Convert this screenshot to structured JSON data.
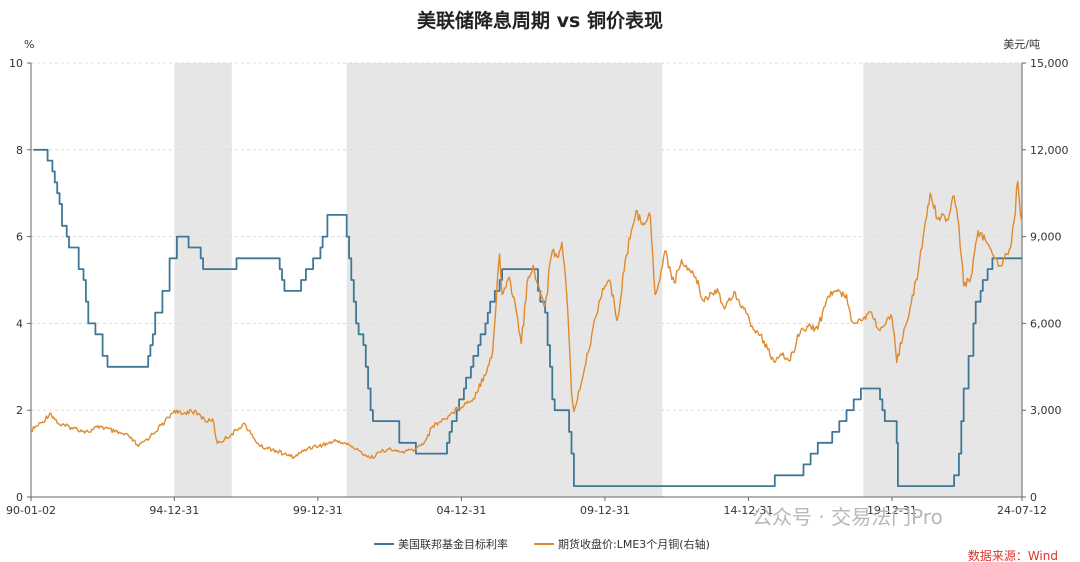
{
  "chart_data": {
    "type": "line",
    "title": "美联储降息周期 vs 铜价表现",
    "left_unit": "%",
    "right_unit": "美元/吨",
    "x_range": [
      "1990-01-02",
      "2024-07-12"
    ],
    "x_ticks": [
      "90-01-02",
      "94-12-31",
      "99-12-31",
      "04-12-31",
      "09-12-31",
      "14-12-31",
      "19-12-31",
      "24-07-12"
    ],
    "y_left": {
      "min": 0,
      "max": 10,
      "ticks": [
        "0",
        "2",
        "4",
        "6",
        "8",
        "10"
      ]
    },
    "y_right": {
      "min": 0,
      "max": 15000,
      "ticks": [
        "0",
        "3,000",
        "6,000",
        "9,000",
        "12,000",
        "15,000"
      ]
    },
    "grid": true,
    "shaded_periods": [
      [
        "1995-01-01",
        "1996-12-31"
      ],
      [
        "2000-12-31",
        "2007-01-01"
      ],
      [
        "2007-01-01",
        "2012-01-01"
      ],
      [
        "2019-01-01",
        "2021-08-01"
      ],
      [
        "2021-08-01",
        "2024-07-12"
      ]
    ],
    "series": [
      {
        "name": "美国联邦基金目标利率",
        "axis": "left",
        "color": "#3f7797",
        "step": true,
        "points": [
          [
            "1990-02-01",
            8.0
          ],
          [
            "1990-07-01",
            8.0
          ],
          [
            "1990-08-01",
            7.75
          ],
          [
            "1990-10-01",
            7.5
          ],
          [
            "1990-11-01",
            7.25
          ],
          [
            "1990-12-01",
            7.0
          ],
          [
            "1991-01-01",
            6.75
          ],
          [
            "1991-02-01",
            6.25
          ],
          [
            "1991-04-01",
            6.0
          ],
          [
            "1991-05-01",
            5.75
          ],
          [
            "1991-09-01",
            5.25
          ],
          [
            "1991-11-01",
            5.0
          ],
          [
            "1991-12-01",
            4.5
          ],
          [
            "1992-01-01",
            4.0
          ],
          [
            "1992-04-01",
            3.75
          ],
          [
            "1992-07-01",
            3.25
          ],
          [
            "1992-09-01",
            3.0
          ],
          [
            "1994-02-01",
            3.25
          ],
          [
            "1994-03-01",
            3.5
          ],
          [
            "1994-04-01",
            3.75
          ],
          [
            "1994-05-01",
            4.25
          ],
          [
            "1994-08-01",
            4.75
          ],
          [
            "1994-11-01",
            5.5
          ],
          [
            "1995-02-01",
            6.0
          ],
          [
            "1995-07-01",
            5.75
          ],
          [
            "1995-12-01",
            5.5
          ],
          [
            "1996-01-01",
            5.25
          ],
          [
            "1997-03-01",
            5.5
          ],
          [
            "1998-09-01",
            5.25
          ],
          [
            "1998-10-01",
            5.0
          ],
          [
            "1998-11-01",
            4.75
          ],
          [
            "1999-06-01",
            5.0
          ],
          [
            "1999-08-01",
            5.25
          ],
          [
            "1999-11-01",
            5.5
          ],
          [
            "2000-02-01",
            5.75
          ],
          [
            "2000-03-01",
            6.0
          ],
          [
            "2000-05-01",
            6.5
          ],
          [
            "2001-01-01",
            6.0
          ],
          [
            "2001-02-01",
            5.5
          ],
          [
            "2001-03-01",
            5.0
          ],
          [
            "2001-04-01",
            4.5
          ],
          [
            "2001-05-01",
            4.0
          ],
          [
            "2001-06-01",
            3.75
          ],
          [
            "2001-08-01",
            3.5
          ],
          [
            "2001-09-01",
            3.0
          ],
          [
            "2001-10-01",
            2.5
          ],
          [
            "2001-11-01",
            2.0
          ],
          [
            "2001-12-01",
            1.75
          ],
          [
            "2002-11-01",
            1.25
          ],
          [
            "2003-06-01",
            1.0
          ],
          [
            "2004-07-01",
            1.25
          ],
          [
            "2004-08-01",
            1.5
          ],
          [
            "2004-09-01",
            1.75
          ],
          [
            "2004-11-01",
            2.0
          ],
          [
            "2004-12-01",
            2.25
          ],
          [
            "2005-02-01",
            2.5
          ],
          [
            "2005-03-01",
            2.75
          ],
          [
            "2005-05-01",
            3.0
          ],
          [
            "2005-06-01",
            3.25
          ],
          [
            "2005-08-01",
            3.5
          ],
          [
            "2005-09-01",
            3.75
          ],
          [
            "2005-11-01",
            4.0
          ],
          [
            "2005-12-01",
            4.25
          ],
          [
            "2006-01-01",
            4.5
          ],
          [
            "2006-03-01",
            4.75
          ],
          [
            "2006-05-01",
            5.0
          ],
          [
            "2006-06-01",
            5.25
          ],
          [
            "2007-09-01",
            4.75
          ],
          [
            "2007-10-01",
            4.5
          ],
          [
            "2007-12-01",
            4.25
          ],
          [
            "2008-01-01",
            3.5
          ],
          [
            "2008-02-01",
            3.0
          ],
          [
            "2008-03-01",
            2.25
          ],
          [
            "2008-04-01",
            2.0
          ],
          [
            "2008-10-01",
            1.5
          ],
          [
            "2008-11-01",
            1.0
          ],
          [
            "2008-12-01",
            0.25
          ],
          [
            "2015-12-01",
            0.5
          ],
          [
            "2016-12-01",
            0.75
          ],
          [
            "2017-03-01",
            1.0
          ],
          [
            "2017-06-01",
            1.25
          ],
          [
            "2017-12-01",
            1.5
          ],
          [
            "2018-03-01",
            1.75
          ],
          [
            "2018-06-01",
            2.0
          ],
          [
            "2018-09-01",
            2.25
          ],
          [
            "2018-12-01",
            2.5
          ],
          [
            "2019-08-01",
            2.25
          ],
          [
            "2019-09-01",
            2.0
          ],
          [
            "2019-10-01",
            1.75
          ],
          [
            "2020-03-01",
            1.25
          ],
          [
            "2020-03-16",
            0.25
          ],
          [
            "2022-03-01",
            0.5
          ],
          [
            "2022-05-01",
            1.0
          ],
          [
            "2022-06-01",
            1.75
          ],
          [
            "2022-07-01",
            2.5
          ],
          [
            "2022-09-01",
            3.25
          ],
          [
            "2022-11-01",
            4.0
          ],
          [
            "2022-12-01",
            4.5
          ],
          [
            "2023-02-01",
            4.75
          ],
          [
            "2023-03-01",
            5.0
          ],
          [
            "2023-05-01",
            5.25
          ],
          [
            "2023-07-01",
            5.5
          ],
          [
            "2024-07-12",
            5.5
          ]
        ]
      },
      {
        "name": "期货收盘价:LME3个月铜(右轴)",
        "axis": "right",
        "color": "#e08a2e",
        "step": false,
        "points": [
          [
            "1990-01-02",
            2300
          ],
          [
            "1990-06-01",
            2600
          ],
          [
            "1990-09-01",
            2900
          ],
          [
            "1991-01-01",
            2500
          ],
          [
            "1991-06-01",
            2400
          ],
          [
            "1992-01-01",
            2250
          ],
          [
            "1992-06-01",
            2450
          ],
          [
            "1992-12-01",
            2250
          ],
          [
            "1993-06-01",
            2100
          ],
          [
            "1993-10-01",
            1750
          ],
          [
            "1994-03-01",
            2100
          ],
          [
            "1994-09-01",
            2600
          ],
          [
            "1995-01-01",
            3000
          ],
          [
            "1995-04-01",
            2850
          ],
          [
            "1995-08-01",
            3000
          ],
          [
            "1995-12-01",
            2800
          ],
          [
            "1996-03-01",
            2600
          ],
          [
            "1996-05-01",
            2700
          ],
          [
            "1996-07-01",
            1850
          ],
          [
            "1996-10-01",
            2000
          ],
          [
            "1997-03-01",
            2300
          ],
          [
            "1997-06-01",
            2550
          ],
          [
            "1997-10-01",
            2050
          ],
          [
            "1998-01-01",
            1750
          ],
          [
            "1998-06-01",
            1650
          ],
          [
            "1998-12-01",
            1450
          ],
          [
            "1999-03-01",
            1380
          ],
          [
            "1999-09-01",
            1700
          ],
          [
            "2000-03-01",
            1800
          ],
          [
            "2000-09-01",
            1950
          ],
          [
            "2001-02-01",
            1800
          ],
          [
            "2001-06-01",
            1600
          ],
          [
            "2001-11-01",
            1350
          ],
          [
            "2002-03-01",
            1550
          ],
          [
            "2002-06-01",
            1650
          ],
          [
            "2002-12-01",
            1550
          ],
          [
            "2003-06-01",
            1650
          ],
          [
            "2003-10-01",
            1950
          ],
          [
            "2004-01-01",
            2450
          ],
          [
            "2004-06-01",
            2700
          ],
          [
            "2004-12-01",
            3100
          ],
          [
            "2005-06-01",
            3400
          ],
          [
            "2005-12-01",
            4500
          ],
          [
            "2006-02-01",
            5000
          ],
          [
            "2006-05-01",
            8400
          ],
          [
            "2006-06-01",
            7000
          ],
          [
            "2006-09-01",
            7600
          ],
          [
            "2006-12-01",
            6400
          ],
          [
            "2007-02-01",
            5300
          ],
          [
            "2007-05-01",
            7600
          ],
          [
            "2007-07-01",
            8000
          ],
          [
            "2007-09-01",
            7300
          ],
          [
            "2007-12-01",
            6600
          ],
          [
            "2008-03-01",
            8500
          ],
          [
            "2008-05-01",
            8300
          ],
          [
            "2008-07-01",
            8800
          ],
          [
            "2008-09-01",
            7000
          ],
          [
            "2008-11-01",
            3600
          ],
          [
            "2008-12-01",
            2950
          ],
          [
            "2009-03-01",
            3900
          ],
          [
            "2009-06-01",
            5000
          ],
          [
            "2009-09-01",
            6200
          ],
          [
            "2009-12-01",
            7200
          ],
          [
            "2010-03-01",
            7500
          ],
          [
            "2010-06-01",
            6100
          ],
          [
            "2010-09-01",
            7800
          ],
          [
            "2010-12-01",
            9200
          ],
          [
            "2011-02-01",
            9900
          ],
          [
            "2011-04-01",
            9500
          ],
          [
            "2011-08-01",
            9700
          ],
          [
            "2011-10-01",
            7000
          ],
          [
            "2011-12-01",
            7500
          ],
          [
            "2012-02-01",
            8500
          ],
          [
            "2012-06-01",
            7400
          ],
          [
            "2012-09-01",
            8200
          ],
          [
            "2012-12-01",
            7900
          ],
          [
            "2013-03-01",
            7600
          ],
          [
            "2013-06-01",
            6800
          ],
          [
            "2013-12-01",
            7200
          ],
          [
            "2014-03-01",
            6500
          ],
          [
            "2014-07-01",
            7100
          ],
          [
            "2014-12-01",
            6350
          ],
          [
            "2015-03-01",
            5800
          ],
          [
            "2015-06-01",
            5600
          ],
          [
            "2015-09-01",
            5100
          ],
          [
            "2015-12-01",
            4650
          ],
          [
            "2016-03-01",
            4900
          ],
          [
            "2016-06-01",
            4700
          ],
          [
            "2016-11-01",
            5800
          ],
          [
            "2017-03-01",
            5900
          ],
          [
            "2017-06-01",
            5800
          ],
          [
            "2017-10-01",
            6900
          ],
          [
            "2018-01-01",
            7100
          ],
          [
            "2018-06-01",
            7000
          ],
          [
            "2018-08-01",
            6100
          ],
          [
            "2018-12-01",
            6100
          ],
          [
            "2019-04-01",
            6400
          ],
          [
            "2019-08-01",
            5750
          ],
          [
            "2019-12-01",
            6150
          ],
          [
            "2020-01-01",
            6200
          ],
          [
            "2020-03-01",
            4650
          ],
          [
            "2020-06-01",
            5800
          ],
          [
            "2020-09-01",
            6700
          ],
          [
            "2020-12-01",
            7800
          ],
          [
            "2021-02-01",
            9000
          ],
          [
            "2021-05-01",
            10500
          ],
          [
            "2021-08-01",
            9600
          ],
          [
            "2021-10-01",
            9800
          ],
          [
            "2021-12-01",
            9600
          ],
          [
            "2022-03-01",
            10400
          ],
          [
            "2022-05-01",
            9400
          ],
          [
            "2022-07-01",
            7300
          ],
          [
            "2022-10-01",
            7600
          ],
          [
            "2023-01-01",
            9200
          ],
          [
            "2023-04-01",
            8900
          ],
          [
            "2023-07-01",
            8400
          ],
          [
            "2023-10-01",
            8000
          ],
          [
            "2024-01-01",
            8400
          ],
          [
            "2024-03-01",
            8800
          ],
          [
            "2024-05-20",
            10900
          ],
          [
            "2024-07-12",
            9500
          ]
        ]
      }
    ],
    "watermark": "公众号 · 交易法门Pro",
    "source": "数据来源：Wind"
  }
}
